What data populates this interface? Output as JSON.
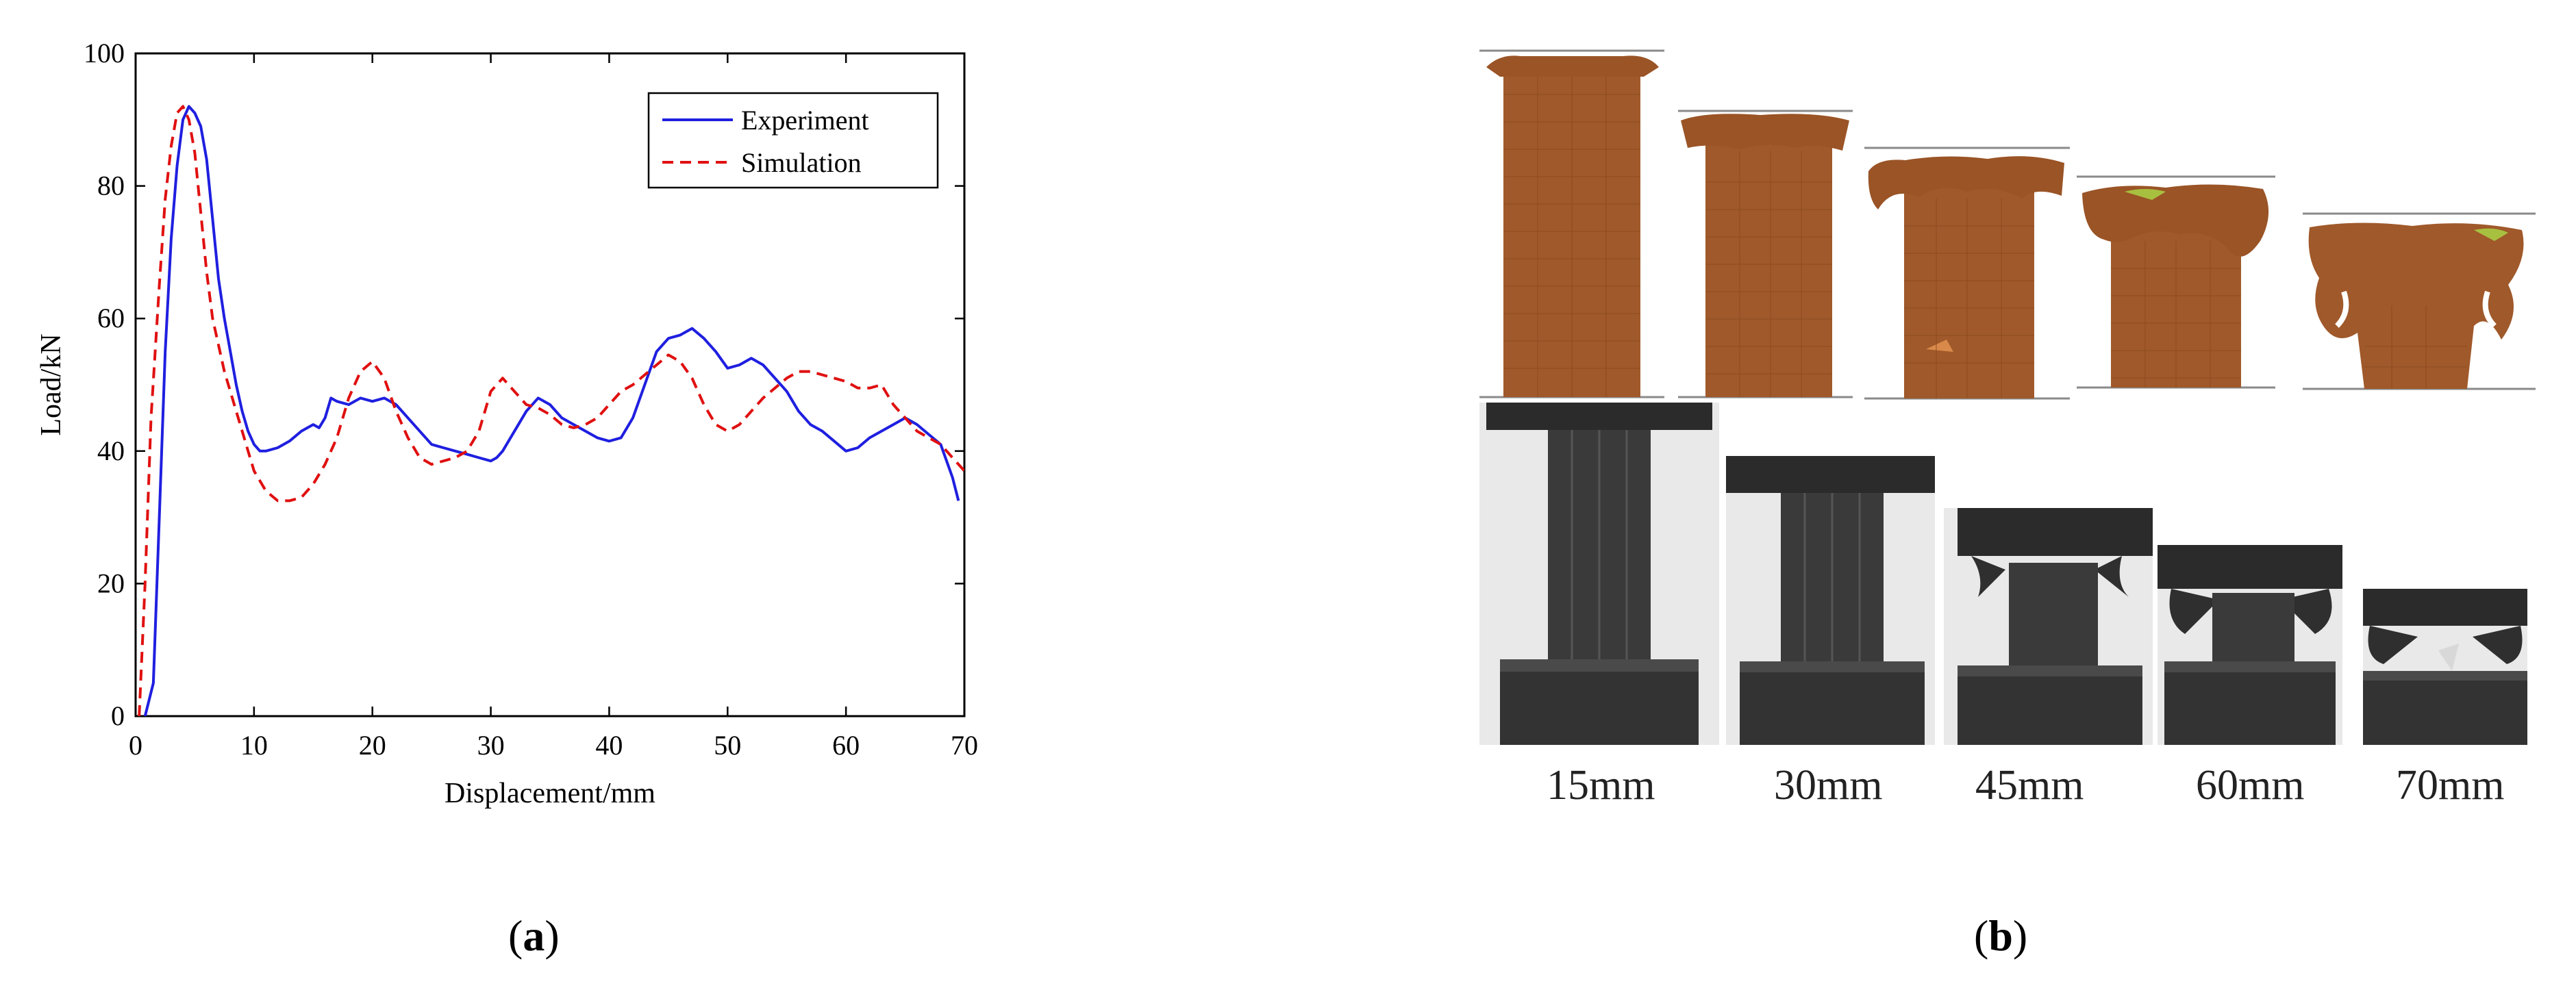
{
  "panel_a": {
    "caption_letter": "a"
  },
  "panel_b": {
    "caption_letter": "b",
    "stages": [
      "15mm",
      "30mm",
      "45mm",
      "60mm",
      "70mm"
    ]
  },
  "colors": {
    "experiment": "#1f1fe0",
    "simulation": "#e01010",
    "sim_body": "#a0592a",
    "sim_grid": "#8a4a20",
    "press_dark": "#2b2b2b",
    "photo_bg": "#e9e9e9"
  },
  "chart_data": {
    "type": "line",
    "xlabel": "Displacement/mm",
    "ylabel": "Load/kN",
    "xlim": [
      0,
      70
    ],
    "ylim": [
      0,
      100
    ],
    "xticks": [
      0,
      10,
      20,
      30,
      40,
      50,
      60,
      70
    ],
    "yticks": [
      0,
      20,
      40,
      60,
      80,
      100
    ],
    "legend_position": "top-right",
    "grid": false,
    "series": [
      {
        "name": "Experiment",
        "style": "solid",
        "color": "#1f1fe0",
        "x": [
          0.8,
          1.5,
          2,
          2.5,
          3,
          3.5,
          4,
          4.5,
          5,
          5.5,
          6,
          6.5,
          7,
          7.5,
          8,
          8.5,
          9,
          9.5,
          10,
          10.5,
          11,
          12,
          13,
          14,
          15,
          15.5,
          16,
          16.5,
          17,
          18,
          19,
          20,
          21,
          22,
          23,
          24,
          25,
          26,
          27,
          28,
          29,
          30,
          30.5,
          31,
          32,
          33,
          34,
          35,
          36,
          37,
          38,
          39,
          40,
          41,
          42,
          43,
          44,
          45,
          46,
          47,
          48,
          49,
          50,
          51,
          52,
          53,
          54,
          55,
          56,
          57,
          58,
          59,
          60,
          61,
          62,
          63,
          64,
          65,
          66,
          67,
          68,
          69,
          69.5
        ],
        "y": [
          0,
          5,
          30,
          55,
          72,
          83,
          90,
          92,
          91,
          89,
          84,
          75,
          66,
          60,
          55,
          50,
          46,
          43,
          41,
          40,
          40,
          40.5,
          41.5,
          43,
          44,
          43.5,
          45,
          48,
          47.5,
          47,
          48,
          47.5,
          48,
          47,
          45,
          43,
          41,
          40.5,
          40,
          39.5,
          39,
          38.5,
          39,
          40,
          43,
          46,
          48,
          47,
          45,
          44,
          43,
          42,
          41.5,
          42,
          45,
          50,
          55,
          57,
          57.5,
          58.5,
          57,
          55,
          52.5,
          53,
          54,
          53,
          51,
          49,
          46,
          44,
          43,
          41.5,
          40,
          40.5,
          42,
          43,
          44,
          45,
          44,
          42.5,
          41,
          36,
          32.5
        ]
      },
      {
        "name": "Simulation",
        "style": "dashed",
        "color": "#e01010",
        "x": [
          0.3,
          0.8,
          1.3,
          2,
          2.5,
          3,
          3.5,
          4,
          4.5,
          5,
          5.5,
          6,
          6.5,
          7,
          7.5,
          8,
          8.5,
          9,
          9.5,
          10,
          11,
          12,
          13,
          14,
          15,
          16,
          17,
          18,
          19,
          20,
          21,
          22,
          23,
          24,
          25,
          26,
          27,
          28,
          29,
          30,
          31,
          32,
          33,
          34,
          35,
          36,
          37,
          38,
          39,
          40,
          41,
          42,
          43,
          44,
          45,
          46,
          47,
          48,
          49,
          50,
          51,
          52,
          53,
          54,
          55,
          56,
          57,
          58,
          59,
          60,
          61,
          62,
          63,
          64,
          65,
          66,
          67,
          68,
          69,
          70
        ],
        "y": [
          0,
          20,
          45,
          65,
          78,
          86,
          91,
          92,
          90,
          85,
          76,
          67,
          60,
          56,
          52,
          49,
          46,
          43,
          40,
          37,
          34,
          32.5,
          32.5,
          33,
          35,
          38,
          42,
          48,
          52,
          53.5,
          51,
          46,
          42,
          39,
          38,
          38.5,
          39,
          40,
          43,
          49,
          51,
          49,
          47,
          46.5,
          45.5,
          44,
          43.5,
          44,
          45,
          47,
          49,
          50,
          51.5,
          53,
          54.5,
          53.5,
          51,
          47,
          44,
          43,
          44,
          46,
          48,
          49.5,
          51,
          52,
          52,
          51.5,
          51,
          50.5,
          49.5,
          49.5,
          50,
          47,
          45,
          43,
          42,
          41,
          39,
          37
        ]
      }
    ]
  }
}
